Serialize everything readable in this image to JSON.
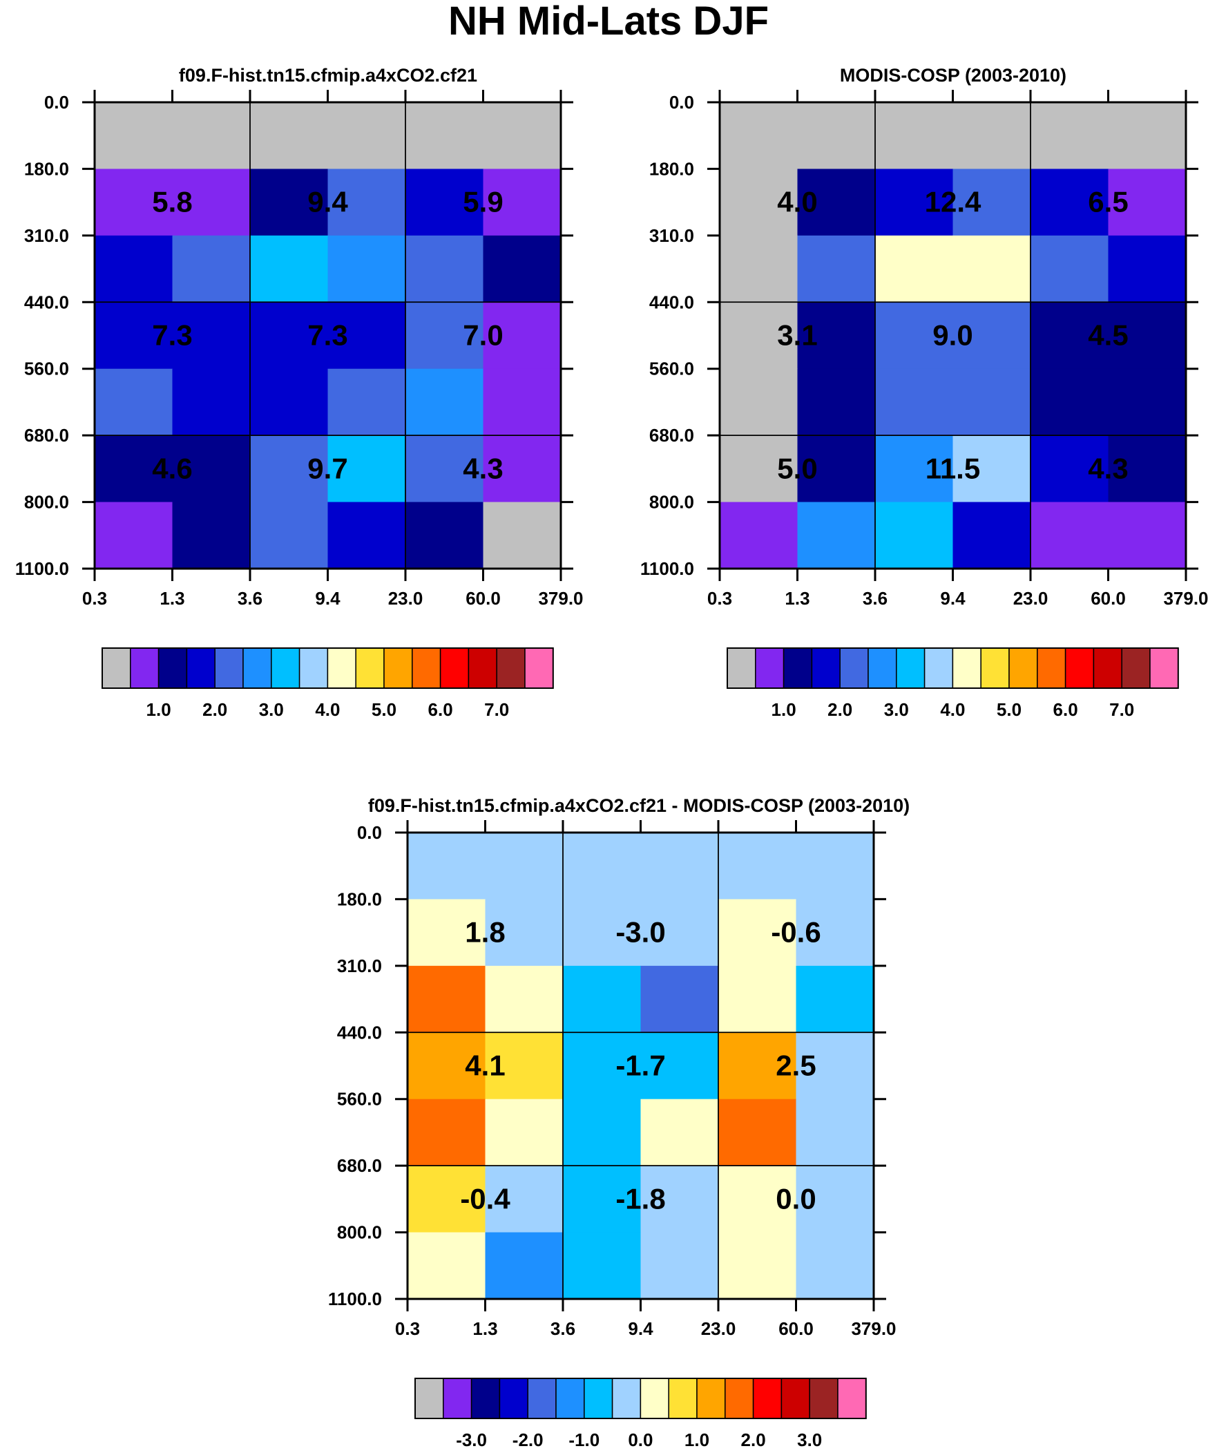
{
  "title": "NH Mid-Lats DJF",
  "colors": {
    "seq": [
      "#c0c0c0",
      "#8227f0",
      "#00008b",
      "#0000cd",
      "#4169e1",
      "#1e90ff",
      "#00bfff",
      "#a0d2ff",
      "#ffffc8",
      "#ffe135",
      "#ffa500",
      "#ff6a00",
      "#ff0000",
      "#cd0000",
      "#9b2323",
      "#ff69b4"
    ],
    "diff": [
      "#c0c0c0",
      "#8227f0",
      "#00008b",
      "#0000cd",
      "#4169e1",
      "#1e90ff",
      "#00bfff",
      "#a0d2ff",
      "#ffffc8",
      "#ffe135",
      "#ffa500",
      "#ff6a00",
      "#ff0000",
      "#cd0000",
      "#9b2323",
      "#ff69b4"
    ]
  },
  "chart_data": [
    {
      "type": "heatmap",
      "title": "f09.F-hist.tn15.cfmip.a4xCO2.cf21",
      "x_ticks": [
        "0.3",
        "1.3",
        "3.6",
        "9.4",
        "23.0",
        "60.0",
        "379.0"
      ],
      "y_ticks": [
        "0.0",
        "180.0",
        "310.0",
        "440.0",
        "560.0",
        "680.0",
        "800.0",
        "1100.0"
      ],
      "cell_colors": [
        [
          0,
          0,
          0,
          0,
          0,
          0
        ],
        [
          1,
          1,
          2,
          4,
          3,
          1
        ],
        [
          3,
          4,
          6,
          5,
          4,
          2
        ],
        [
          3,
          3,
          3,
          3,
          4,
          1
        ],
        [
          4,
          3,
          3,
          4,
          5,
          1
        ],
        [
          2,
          2,
          4,
          6,
          4,
          1
        ],
        [
          1,
          2,
          4,
          3,
          2,
          0
        ]
      ],
      "block_labels": [
        [
          "5.8",
          "9.4",
          "5.9"
        ],
        [
          "7.3",
          "7.3",
          "7.0"
        ],
        [
          "4.6",
          "9.7",
          "4.3"
        ]
      ],
      "colorbar_labels": [
        "1.0",
        "2.0",
        "3.0",
        "4.0",
        "5.0",
        "6.0",
        "7.0"
      ]
    },
    {
      "type": "heatmap",
      "title": "MODIS-COSP (2003-2010)",
      "x_ticks": [
        "0.3",
        "1.3",
        "3.6",
        "9.4",
        "23.0",
        "60.0",
        "379.0"
      ],
      "y_ticks": [
        "0.0",
        "180.0",
        "310.0",
        "440.0",
        "560.0",
        "680.0",
        "800.0",
        "1100.0"
      ],
      "cell_colors": [
        [
          0,
          0,
          0,
          0,
          0,
          0
        ],
        [
          0,
          2,
          3,
          4,
          3,
          1
        ],
        [
          0,
          4,
          8,
          8,
          4,
          3
        ],
        [
          0,
          2,
          4,
          4,
          2,
          2
        ],
        [
          0,
          2,
          4,
          4,
          2,
          2
        ],
        [
          0,
          2,
          5,
          7,
          3,
          2
        ],
        [
          1,
          5,
          6,
          3,
          1,
          1
        ]
      ],
      "block_labels": [
        [
          "4.0",
          "12.4",
          "6.5"
        ],
        [
          "3.1",
          "9.0",
          "4.5"
        ],
        [
          "5.0",
          "11.5",
          "4.3"
        ]
      ],
      "colorbar_labels": [
        "1.0",
        "2.0",
        "3.0",
        "4.0",
        "5.0",
        "6.0",
        "7.0"
      ]
    },
    {
      "type": "heatmap",
      "title": "f09.F-hist.tn15.cfmip.a4xCO2.cf21 - MODIS-COSP (2003-2010)",
      "x_ticks": [
        "0.3",
        "1.3",
        "3.6",
        "9.4",
        "23.0",
        "60.0",
        "379.0"
      ],
      "y_ticks": [
        "0.0",
        "180.0",
        "310.0",
        "440.0",
        "560.0",
        "680.0",
        "800.0",
        "1100.0"
      ],
      "cell_colors": [
        [
          7,
          7,
          7,
          7,
          7,
          7
        ],
        [
          8,
          7,
          7,
          7,
          8,
          7
        ],
        [
          11,
          8,
          6,
          4,
          8,
          6
        ],
        [
          10,
          9,
          6,
          6,
          10,
          7
        ],
        [
          11,
          8,
          6,
          8,
          11,
          7
        ],
        [
          9,
          7,
          6,
          7,
          8,
          7
        ],
        [
          8,
          5,
          6,
          7,
          8,
          7
        ]
      ],
      "block_labels": [
        [
          "1.8",
          "-3.0",
          "-0.6"
        ],
        [
          "4.1",
          "-1.7",
          "2.5"
        ],
        [
          "-0.4",
          "-1.8",
          "0.0"
        ]
      ],
      "colorbar_labels": [
        "-3.0",
        "-2.0",
        "-1.0",
        "0.0",
        "1.0",
        "2.0",
        "3.0"
      ]
    }
  ]
}
